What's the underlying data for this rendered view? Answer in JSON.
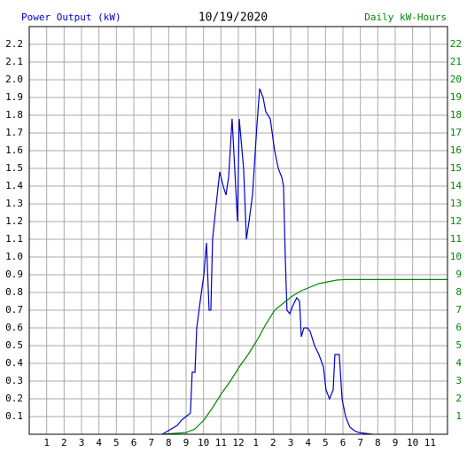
{
  "chart_data": {
    "type": "line",
    "title": "10/19/2020",
    "y_label": "Power Output (kW)",
    "y2_label": "Daily kW-Hours",
    "xlim": [
      0,
      24
    ],
    "xticks": [
      1,
      2,
      3,
      4,
      5,
      6,
      7,
      8,
      9,
      10,
      11,
      12,
      {
        "value": 13,
        "label": "1"
      },
      {
        "value": 14,
        "label": "2"
      },
      {
        "value": 15,
        "label": "3"
      },
      {
        "value": 16,
        "label": "4"
      },
      {
        "value": 17,
        "label": "5"
      },
      {
        "value": 18,
        "label": "6"
      },
      {
        "value": 19,
        "label": "7"
      },
      {
        "value": 20,
        "label": "8"
      },
      {
        "value": 21,
        "label": "9"
      },
      {
        "value": 22,
        "label": "10"
      },
      {
        "value": 23,
        "label": "11"
      }
    ],
    "ylim": [
      0,
      2.3
    ],
    "yticks": [
      0.1,
      0.2,
      0.3,
      0.4,
      0.5,
      0.6,
      0.7,
      0.8,
      0.9,
      {
        "value": 1,
        "label": "1.0"
      },
      1.1,
      1.2,
      1.3,
      1.4,
      1.5,
      1.6,
      1.7,
      1.8,
      1.9,
      {
        "value": 2,
        "label": "2.0"
      },
      2.1,
      2.2
    ],
    "y2lim": [
      0,
      23
    ],
    "y2ticks": [
      1,
      2,
      3,
      4,
      5,
      6,
      7,
      8,
      9,
      10,
      11,
      12,
      13,
      14,
      15,
      16,
      17,
      18,
      19,
      20,
      21,
      22
    ],
    "grid": true,
    "series": [
      {
        "name": "Power Output (kW)",
        "color": "#0000cc",
        "x": [
          7.63,
          7.98,
          8.49,
          8.74,
          9.0,
          9.25,
          9.35,
          9.51,
          9.61,
          9.81,
          10.02,
          10.17,
          10.32,
          10.42,
          10.52,
          10.73,
          10.93,
          11.13,
          11.29,
          11.44,
          11.64,
          11.79,
          11.95,
          12.05,
          12.3,
          12.46,
          12.61,
          12.81,
          13.07,
          13.22,
          13.42,
          13.57,
          13.83,
          14.08,
          14.29,
          14.49,
          14.59,
          14.69,
          14.79,
          14.95,
          15.1,
          15.35,
          15.51,
          15.61,
          15.76,
          15.96,
          16.12,
          16.37,
          16.62,
          16.88,
          17.03,
          17.23,
          17.44,
          17.54,
          17.79,
          17.95,
          18.15,
          18.4,
          18.66,
          18.91,
          19.67
        ],
        "values": [
          0,
          0.02,
          0.05,
          0.08,
          0.1,
          0.12,
          0.35,
          0.35,
          0.6,
          0.75,
          0.9,
          1.08,
          0.7,
          0.7,
          1.1,
          1.3,
          1.48,
          1.4,
          1.35,
          1.45,
          1.78,
          1.5,
          1.2,
          1.78,
          1.5,
          1.1,
          1.2,
          1.35,
          1.75,
          1.95,
          1.9,
          1.82,
          1.78,
          1.6,
          1.5,
          1.45,
          1.4,
          1.0,
          0.7,
          0.68,
          0.72,
          0.77,
          0.75,
          0.55,
          0.6,
          0.6,
          0.58,
          0.5,
          0.45,
          0.38,
          0.25,
          0.2,
          0.25,
          0.45,
          0.45,
          0.2,
          0.1,
          0.04,
          0.02,
          0.01,
          0
        ]
      },
      {
        "name": "Daily kW-Hours",
        "color": "#008800",
        "axis": "y2",
        "x": [
          7.63,
          9.0,
          9.51,
          10.02,
          10.52,
          11.03,
          11.54,
          12.05,
          12.56,
          13.07,
          13.57,
          14.08,
          14.59,
          15.1,
          15.61,
          16.12,
          16.62,
          17.13,
          17.64,
          18.15,
          18.66,
          24
        ],
        "values": [
          0,
          0.1,
          0.3,
          0.8,
          1.5,
          2.3,
          3.0,
          3.8,
          4.5,
          5.3,
          6.2,
          7.0,
          7.4,
          7.8,
          8.1,
          8.3,
          8.5,
          8.6,
          8.7,
          8.73,
          8.73,
          8.73
        ]
      }
    ]
  }
}
